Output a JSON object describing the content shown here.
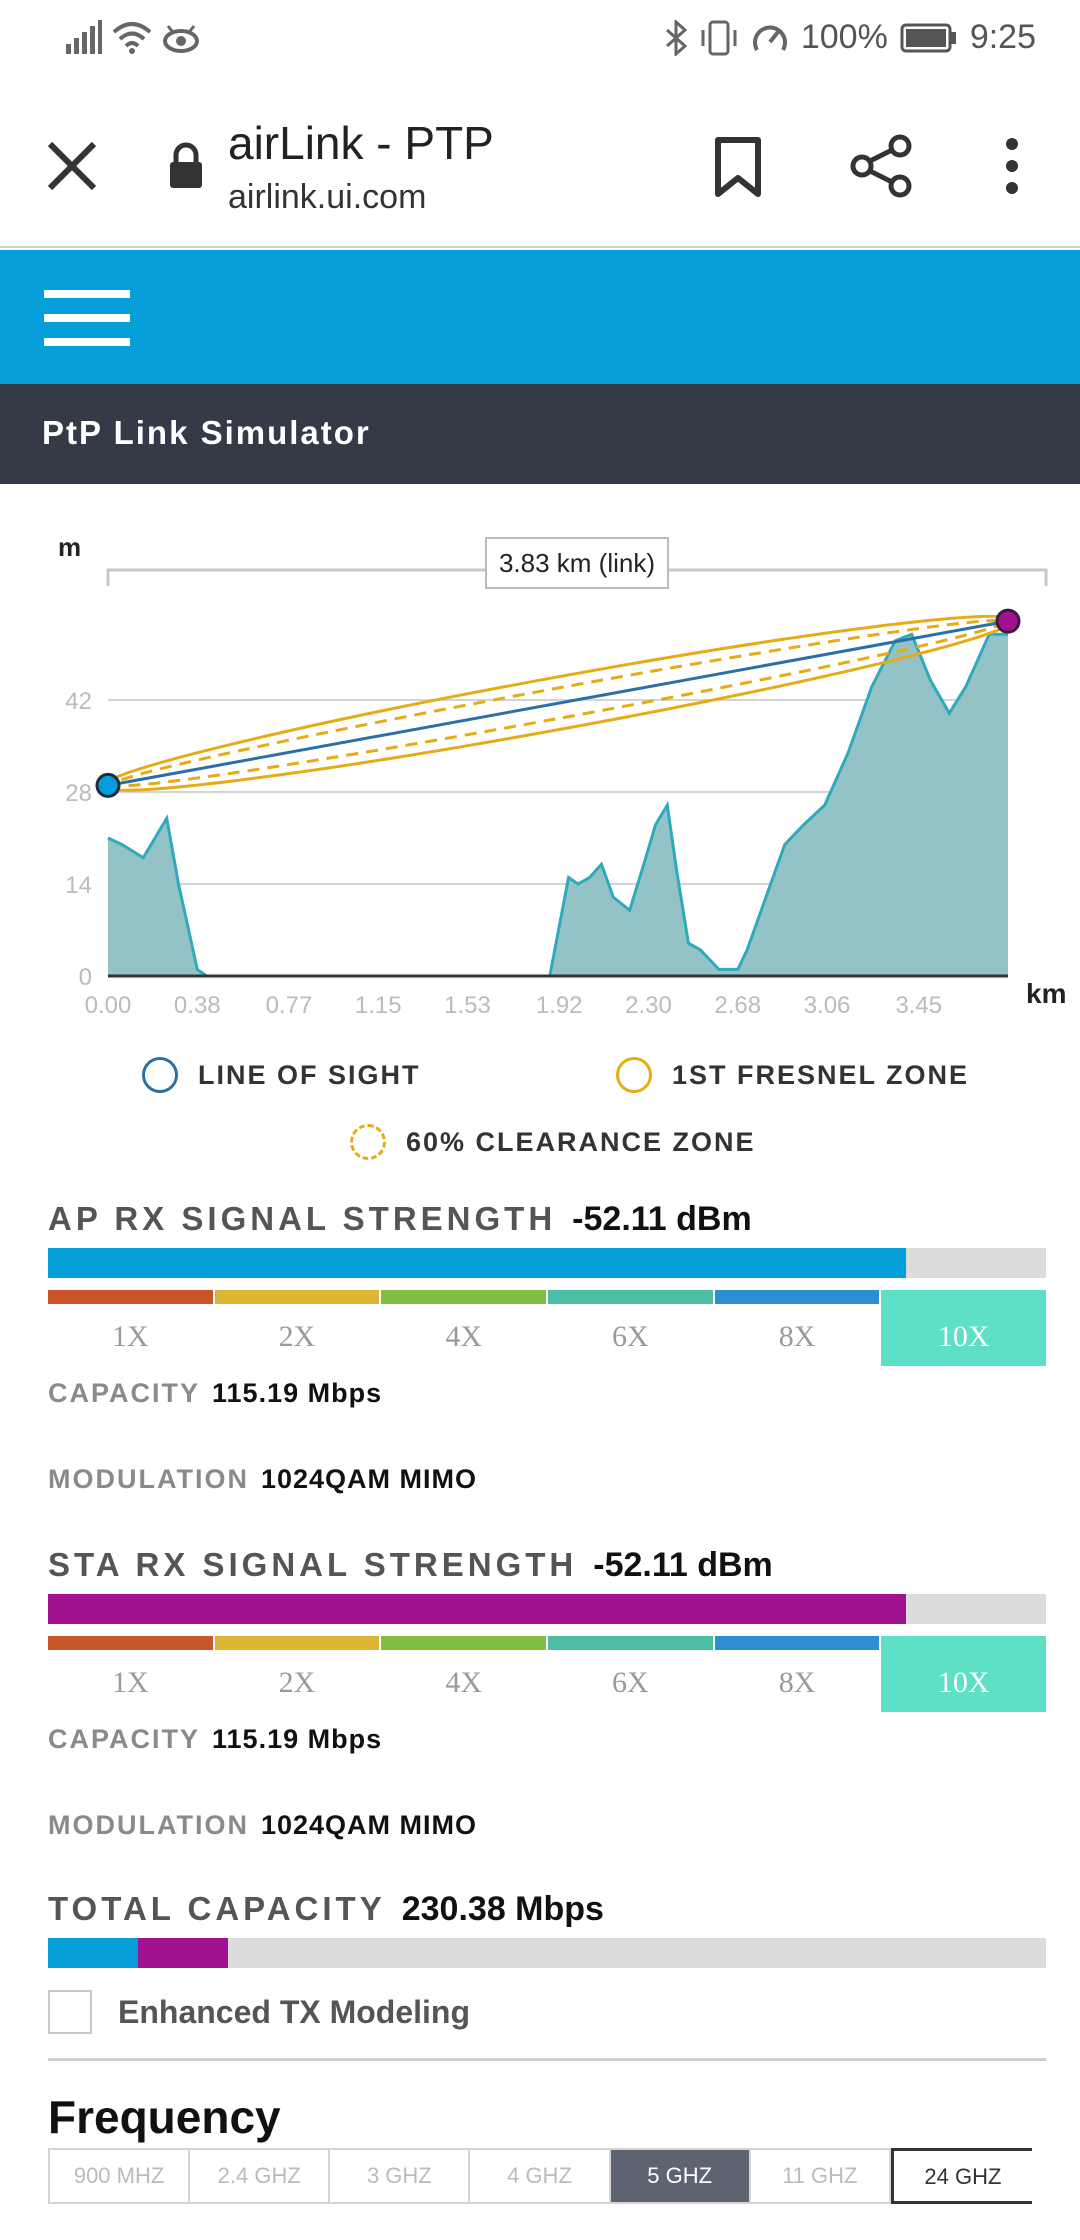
{
  "status": {
    "battery": "100%",
    "time": "9:25"
  },
  "browser": {
    "title": "airLink - PTP",
    "url": "airlink.ui.com"
  },
  "app": {
    "page_title": "PtP Link Simulator"
  },
  "chart_data": {
    "type": "area",
    "ylabel": "m",
    "xlabel": "km",
    "link_label": "3.83 km (link)",
    "y_ticks": [
      "0",
      "14",
      "28",
      "42"
    ],
    "x_ticks": [
      "0.00",
      "0.38",
      "0.77",
      "1.15",
      "1.53",
      "1.92",
      "2.30",
      "2.68",
      "3.06",
      "3.45"
    ],
    "ylim": [
      0,
      56
    ],
    "xlim": [
      0,
      3.83
    ],
    "x": [
      0,
      0.06,
      0.15,
      0.25,
      0.3,
      0.38,
      0.42,
      0.6,
      1.0,
      1.5,
      1.88,
      1.96,
      2.0,
      2.05,
      2.1,
      2.15,
      2.22,
      2.28,
      2.33,
      2.38,
      2.42,
      2.47,
      2.52,
      2.6,
      2.68,
      2.72,
      2.8,
      2.88,
      2.96,
      3.05,
      3.15,
      3.25,
      3.35,
      3.42,
      3.5,
      3.58,
      3.65,
      3.75,
      3.83
    ],
    "y": [
      21,
      20,
      18,
      24,
      14,
      1,
      0,
      0,
      0,
      0,
      0,
      15,
      14,
      15,
      17,
      12,
      10,
      17,
      23,
      26,
      16,
      5,
      4,
      1,
      1,
      4,
      12,
      20,
      23,
      26,
      34,
      44,
      51,
      52,
      45,
      40,
      44,
      52,
      52
    ],
    "ap_height": 29,
    "sta_height": 54,
    "ap_color": "#059ed9",
    "sta_color": "#a0128f",
    "terrain_fill": "#93c3c7",
    "terrain_stroke": "#2eaabd",
    "los_color": "#2a6fa5",
    "fresnel_color": "#e5ac18"
  },
  "legend": {
    "line_of_sight": "LINE OF SIGHT",
    "fresnel": "1ST FRESNEL ZONE",
    "clearance": "60% CLEARANCE ZONE"
  },
  "ap": {
    "title": "AP RX SIGNAL STRENGTH",
    "value": "-52.11 dBm",
    "bar_fraction": 0.86,
    "bar_color": "#059ed9",
    "capacity_label": "CAPACITY",
    "capacity_value": "115.19 Mbps",
    "modulation_label": "MODULATION",
    "modulation_value": "1024QAM MIMO"
  },
  "sta": {
    "title": "STA RX SIGNAL STRENGTH",
    "value": "-52.11 dBm",
    "bar_fraction": 0.86,
    "bar_color": "#a0128f",
    "capacity_label": "CAPACITY",
    "capacity_value": "115.19 Mbps",
    "modulation_label": "MODULATION",
    "modulation_value": "1024QAM MIMO"
  },
  "mcs_levels": [
    "1X",
    "2X",
    "4X",
    "6X",
    "8X",
    "10X"
  ],
  "mcs_colors": [
    "#c9552b",
    "#dbb533",
    "#82bd44",
    "#4cbea3",
    "#2c8fd1",
    "#5de0c5"
  ],
  "mcs_active": "10X",
  "total": {
    "title": "TOTAL CAPACITY",
    "value": "230.38 Mbps",
    "ap_fraction": 0.09,
    "sta_fraction": 0.09
  },
  "options": {
    "enhanced_tx_label": "Enhanced TX Modeling"
  },
  "frequency": {
    "title": "Frequency",
    "bands": [
      "900 MHZ",
      "2.4 GHZ",
      "3 GHZ",
      "4 GHZ",
      "5 GHZ",
      "11 GHZ",
      "24 GHZ"
    ],
    "selected": "5 GHZ"
  }
}
